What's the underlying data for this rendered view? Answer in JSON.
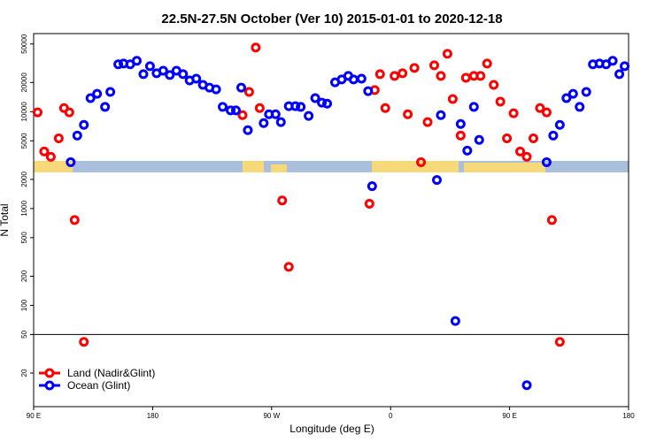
{
  "chart_data": {
    "type": "scatter",
    "title": "22.5N-27.5N October (Ver 10)   2015-01-01 to 2020-12-18",
    "x_label": "Longitude (deg E)",
    "y_label": "N Total",
    "log_y": true,
    "xlim": [
      90,
      540
    ],
    "ylim": [
      9,
      64000
    ],
    "xticks": [
      {
        "value": 90,
        "label": "90 E"
      },
      180,
      {
        "value": 270,
        "label": "90 W"
      },
      {
        "value": 360,
        "label": "0"
      },
      {
        "value": 450,
        "label": "90 E"
      },
      {
        "value": 540,
        "label": "180"
      }
    ],
    "yticks": [
      20,
      50,
      100,
      200,
      500,
      1000,
      2000,
      5000,
      10000,
      20000,
      50000
    ],
    "hline": 50,
    "legend": "lower left",
    "series": [
      {
        "name": "Land (Nadir&Glint)",
        "color": "#ff0000",
        "x": [
          93,
          98,
          103,
          109,
          113,
          117,
          121,
          128,
          248,
          253,
          258,
          261,
          278,
          283,
          344,
          348,
          352,
          356,
          363,
          369,
          373,
          378,
          383,
          388,
          393,
          398,
          403,
          407,
          413,
          417,
          423,
          428,
          433,
          438,
          443,
          448,
          453,
          458,
          463,
          468,
          473,
          478,
          482,
          488
        ],
        "values": [
          9840,
          3880,
          3420,
          5300,
          10900,
          9840,
          760,
          42,
          9200,
          16000,
          46000,
          10900,
          1210,
          250,
          1120,
          16700,
          24400,
          10900,
          23400,
          24900,
          9400,
          28300,
          3010,
          7800,
          30100,
          23400,
          39600,
          13500,
          5670,
          22400,
          23400,
          23400,
          31400,
          18900,
          12700,
          5300,
          9620,
          3880,
          3420,
          5300,
          10900,
          9840,
          760,
          42
        ]
      },
      {
        "name": "Ocean (Glint)",
        "color": "#0000ff",
        "x": [
          118,
          123,
          128,
          133,
          138,
          144,
          148,
          154,
          158,
          163,
          168,
          173,
          178,
          183,
          188,
          193,
          198,
          203,
          208,
          213,
          218,
          223,
          228,
          233,
          239,
          243,
          247,
          252,
          264,
          268,
          273,
          277,
          283,
          288,
          292,
          298,
          303,
          308,
          312,
          318,
          323,
          328,
          332,
          338,
          343,
          346,
          395,
          398,
          409,
          413,
          418,
          423,
          427,
          463,
          478,
          483,
          488,
          493,
          498,
          503,
          508,
          513,
          518,
          523,
          528,
          533,
          537
        ],
        "values": [
          3010,
          5670,
          7310,
          13800,
          15300,
          11200,
          16000,
          30800,
          31400,
          30800,
          33500,
          24400,
          29500,
          24900,
          26500,
          23900,
          26500,
          24400,
          21000,
          21900,
          18900,
          17700,
          17000,
          11200,
          10300,
          10300,
          17700,
          6440,
          7620,
          9400,
          9400,
          7800,
          11400,
          11400,
          11200,
          9040,
          13800,
          12400,
          12100,
          20100,
          21500,
          23400,
          21500,
          21900,
          16300,
          1700,
          1970,
          9200,
          69,
          7460,
          3960,
          11200,
          5110,
          15,
          3010,
          5670,
          7310,
          13800,
          15300,
          11200,
          16000,
          30800,
          31400,
          30800,
          33500,
          24400,
          29500
        ]
      }
    ]
  }
}
